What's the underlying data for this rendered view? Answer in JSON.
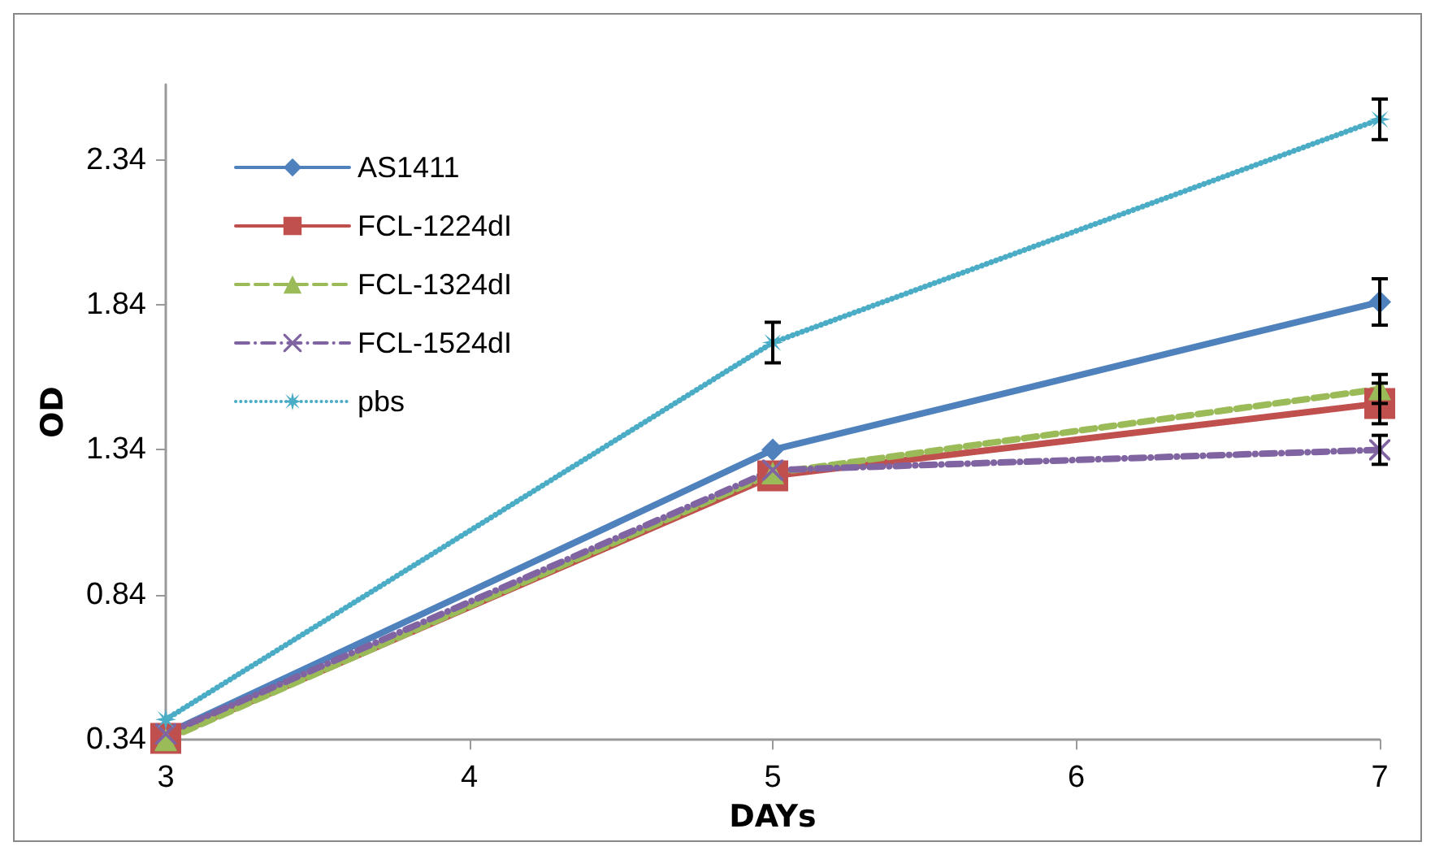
{
  "chart_data": {
    "type": "line",
    "xlabel": "DAYs",
    "ylabel": "OD",
    "x": [
      3,
      5,
      7
    ],
    "series": [
      {
        "name": "AS1411",
        "color": "#4f81bd",
        "values": [
          0.36,
          1.34,
          1.85
        ],
        "errors": [
          null,
          null,
          0.08
        ],
        "marker": "diamond",
        "line_style": "solid"
      },
      {
        "name": "FCL-1224dI",
        "color": "#c0504d",
        "values": [
          0.345,
          1.25,
          1.5
        ],
        "errors": [
          null,
          null,
          0.07
        ],
        "marker": "square",
        "line_style": "solid"
      },
      {
        "name": "FCL-1324dI",
        "color": "#9bbb59",
        "values": [
          0.34,
          1.26,
          1.55
        ],
        "errors": [
          null,
          null,
          0.05
        ],
        "marker": "triangle",
        "line_style": "dashed"
      },
      {
        "name": "FCL-1524dI",
        "color": "#8064a2",
        "values": [
          0.36,
          1.27,
          1.34
        ],
        "errors": [
          null,
          null,
          0.05
        ],
        "marker": "cross",
        "line_style": "dashdot"
      },
      {
        "name": "pbs",
        "color": "#4bacc6",
        "values": [
          0.41,
          1.71,
          2.48
        ],
        "errors": [
          null,
          0.07,
          0.07
        ],
        "marker": "star",
        "line_style": "dotted"
      }
    ],
    "xlim": [
      3,
      7
    ],
    "xticks": [
      3,
      4,
      5,
      6,
      7
    ],
    "ylim": [
      0.34,
      2.6
    ],
    "yticks": [
      0.34,
      0.84,
      1.34,
      1.84,
      2.34
    ],
    "grid": false,
    "legend": "top left"
  }
}
